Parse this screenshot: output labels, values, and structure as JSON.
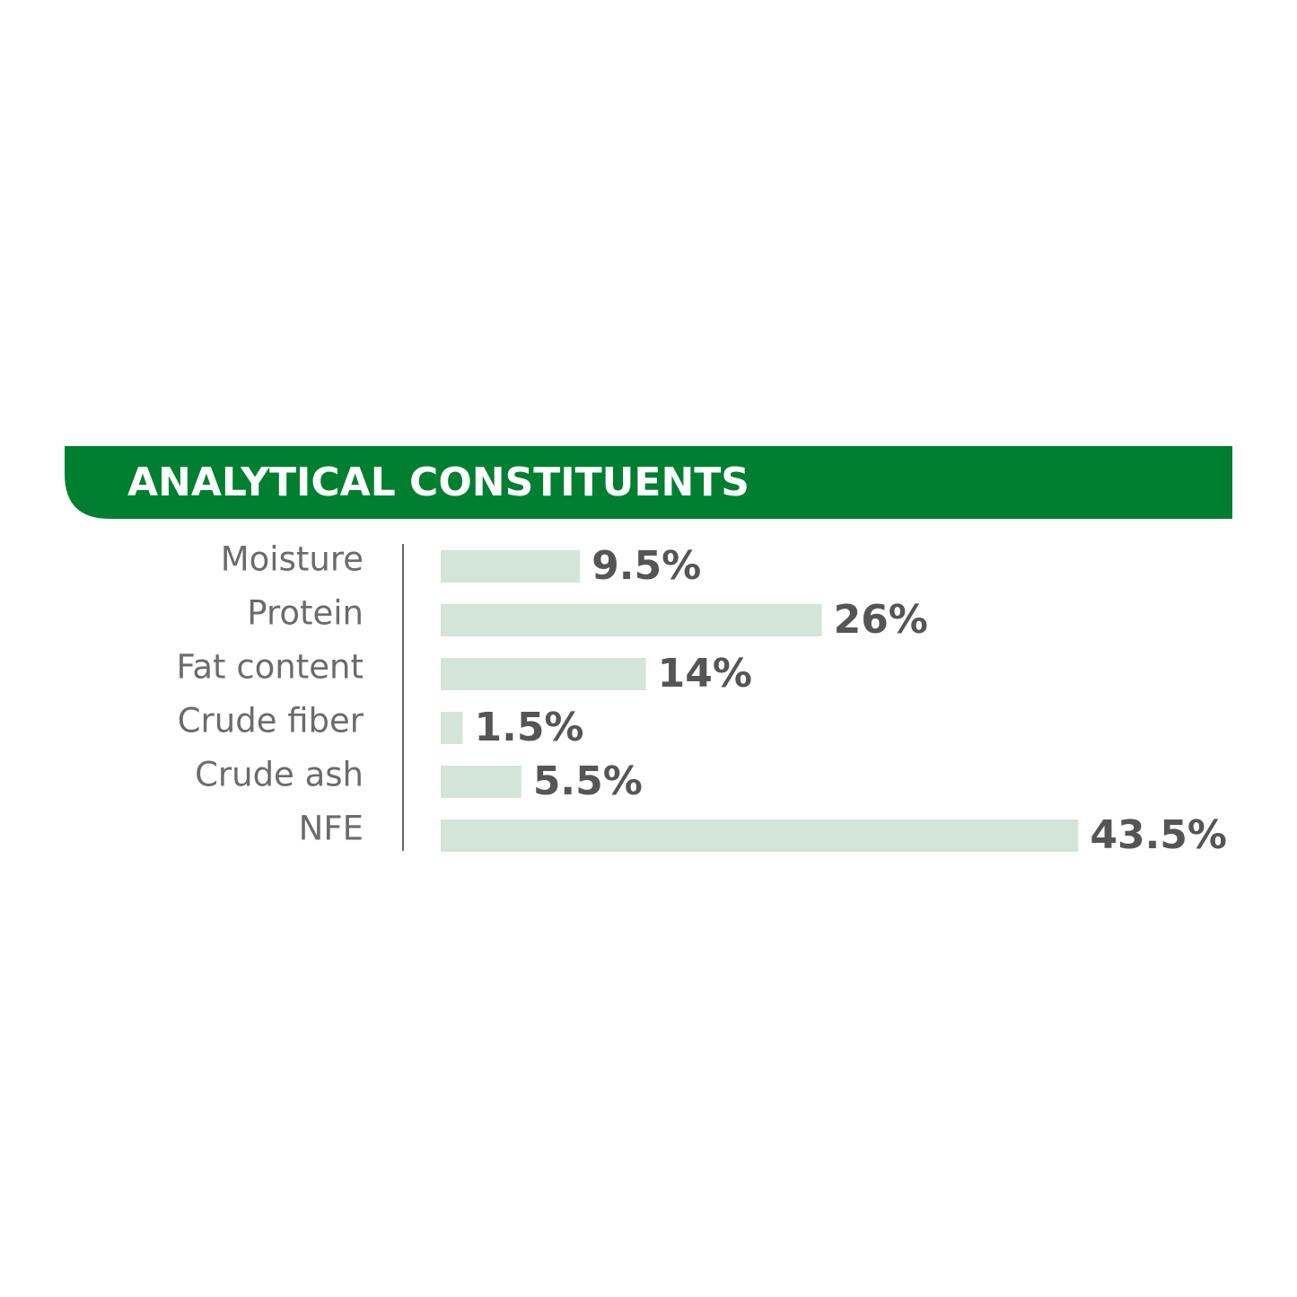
{
  "chart_data": {
    "type": "bar",
    "orientation": "horizontal",
    "title": "ANALYTICAL CONSTITUENTS",
    "categories": [
      "Moisture",
      "Protein",
      "Fat content",
      "Crude fiber",
      "Crude ash",
      "NFE"
    ],
    "values": [
      9.5,
      26,
      14,
      1.5,
      5.5,
      43.5
    ],
    "value_labels": [
      "9.5%",
      "26%",
      "14%",
      "1.5%",
      "5.5%",
      "43.5%"
    ],
    "color": "#d3e5d8"
  }
}
